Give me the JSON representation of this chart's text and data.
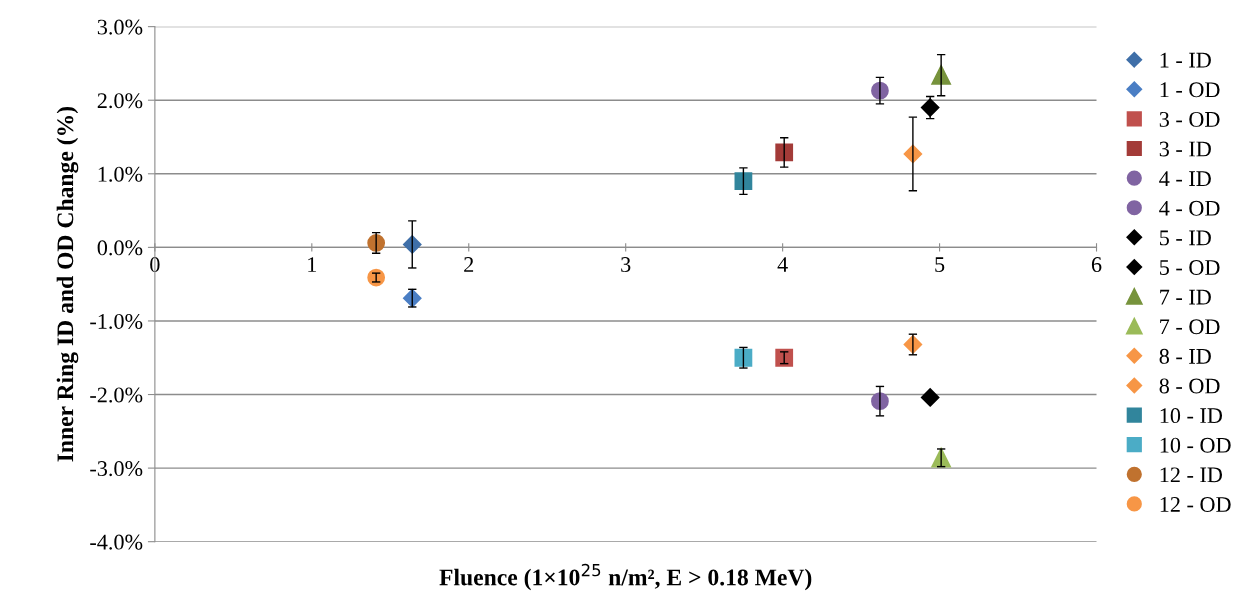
{
  "chart_data": {
    "type": "scatter",
    "xlabel": "Fluence (1×10$^{25}$ n/m², E > 0.18 MeV)",
    "ylabel": "Inner Ring ID and OD Change (%)",
    "xlim": [
      0,
      6
    ],
    "xticks": [
      0,
      1,
      2,
      3,
      4,
      5,
      6
    ],
    "ylim": [
      -4.0,
      3.0
    ],
    "yticks": [
      {
        "value": -4.0,
        "label": "-4.0%"
      },
      {
        "value": -3.0,
        "label": "-3.0%"
      },
      {
        "value": -2.0,
        "label": "-2.0%"
      },
      {
        "value": -1.0,
        "label": "-1.0%"
      },
      {
        "value": 0.0,
        "label": "0.0%"
      },
      {
        "value": 1.0,
        "label": "1.0%"
      },
      {
        "value": 2.0,
        "label": "2.0%"
      },
      {
        "value": 3.0,
        "label": "3.0%"
      }
    ],
    "grid": "y",
    "legend": "right",
    "series": [
      {
        "name": "1 - ID",
        "color": "#3f6fa8",
        "marker": "diamond",
        "x": [
          1.64
        ],
        "values": [
          0.04
        ],
        "errors": [
          0.32
        ]
      },
      {
        "name": "1 - OD",
        "color": "#4a7ec4",
        "marker": "diamond",
        "x": [
          1.64
        ],
        "values": [
          -0.69
        ],
        "errors": [
          0.12
        ]
      },
      {
        "name": "3 - OD",
        "color": "#c0504d",
        "marker": "square",
        "x": [
          4.01
        ],
        "values": [
          -1.5
        ],
        "errors": [
          0.08
        ]
      },
      {
        "name": "3 - ID",
        "color": "#a33b38",
        "marker": "square",
        "x": [
          4.01
        ],
        "values": [
          1.29
        ],
        "errors": [
          0.2
        ]
      },
      {
        "name": "4 - ID",
        "color": "#8064a2",
        "marker": "circle",
        "x": [
          4.62
        ],
        "values": [
          2.13
        ],
        "errors": [
          0.18
        ]
      },
      {
        "name": "4 - OD",
        "color": "#8064a2",
        "marker": "circle",
        "x": [
          4.62
        ],
        "values": [
          -2.09
        ],
        "errors": [
          0.2
        ]
      },
      {
        "name": "5 - ID",
        "color": "#000000",
        "marker": "diamond",
        "x": [
          4.94
        ],
        "values": [
          1.9
        ],
        "errors": [
          0.15
        ]
      },
      {
        "name": "5 - OD",
        "color": "#000000",
        "marker": "diamond",
        "x": [
          4.94
        ],
        "values": [
          -2.04
        ],
        "errors": [
          0.05
        ]
      },
      {
        "name": "7 - ID",
        "color": "#77933c",
        "marker": "triangle",
        "x": [
          5.01
        ],
        "values": [
          2.34
        ],
        "errors": [
          0.28
        ]
      },
      {
        "name": "7 - OD",
        "color": "#9bbb59",
        "marker": "triangle",
        "x": [
          5.01
        ],
        "values": [
          -2.86
        ],
        "errors": [
          0.12
        ]
      },
      {
        "name": "8 - ID",
        "color": "#f79646",
        "marker": "diamond",
        "x": [
          4.83
        ],
        "values": [
          1.27
        ],
        "errors": [
          0.5
        ]
      },
      {
        "name": "8 - OD",
        "color": "#f79646",
        "marker": "diamond",
        "x": [
          4.83
        ],
        "values": [
          -1.32
        ],
        "errors": [
          0.14
        ]
      },
      {
        "name": "10 - ID",
        "color": "#31859c",
        "marker": "square",
        "x": [
          3.75
        ],
        "values": [
          0.9
        ],
        "errors": [
          0.18
        ]
      },
      {
        "name": "10 - OD",
        "color": "#4bacc6",
        "marker": "square",
        "x": [
          3.75
        ],
        "values": [
          -1.5
        ],
        "errors": [
          0.14
        ]
      },
      {
        "name": "12 - ID",
        "color": "#c0722f",
        "marker": "circle",
        "x": [
          1.41
        ],
        "values": [
          0.06
        ],
        "errors": [
          0.14
        ]
      },
      {
        "name": "12 - OD",
        "color": "#f79646",
        "marker": "circle",
        "x": [
          1.41
        ],
        "values": [
          -0.41
        ],
        "errors": [
          0.06
        ]
      }
    ]
  }
}
